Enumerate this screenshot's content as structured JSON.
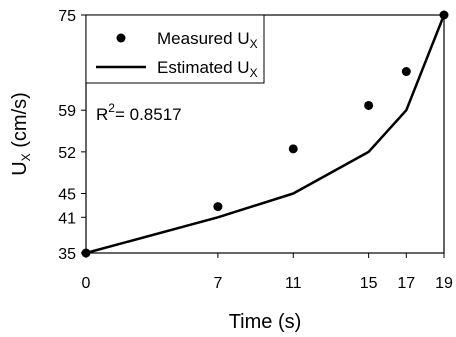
{
  "chart_data": {
    "type": "scatter",
    "title": "",
    "xlabel": "Time (s)",
    "ylabel": {
      "main": "U",
      "sub": "X",
      "unit": " (cm/s)"
    },
    "xlim": [
      0,
      19
    ],
    "ylim": [
      35,
      75
    ],
    "x_ticks": [
      0,
      7,
      11,
      15,
      17,
      19
    ],
    "y_ticks": [
      35,
      41,
      45,
      52,
      59,
      75
    ],
    "grid": false,
    "legend_position": "top-left",
    "series": [
      {
        "name": {
          "main": "Measured U",
          "sub": "X"
        },
        "kind": "markers",
        "color": "#000000",
        "x": [
          0,
          7,
          11,
          15,
          17,
          19
        ],
        "y": [
          35,
          42.8,
          52.5,
          59.8,
          65.5,
          75
        ]
      },
      {
        "name": {
          "main": "Estimated U",
          "sub": "X"
        },
        "kind": "line",
        "color": "#000000",
        "x": [
          0,
          7,
          11,
          15,
          17,
          19
        ],
        "y": [
          35,
          41,
          45,
          52,
          59,
          75
        ]
      }
    ],
    "annotation": {
      "label": "R",
      "sup": "2",
      "value": "= 0.8517"
    }
  }
}
